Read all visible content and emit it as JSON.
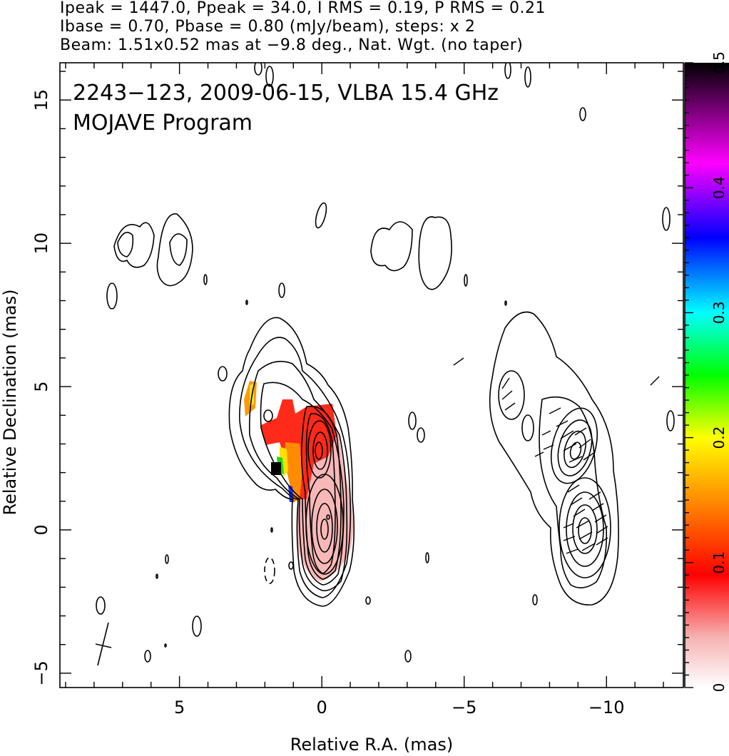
{
  "header": {
    "line1": "Ipeak = 1447.0, Ppeak = 34.0, I RMS = 0.19, P RMS = 0.21",
    "line2": "Ibase = 0.70, Pbase = 0.80 (mJy/beam), steps: x 2",
    "line3": "Beam: 1.51x0.52 mas at −9.8 deg., Nat. Wgt. (no taper)"
  },
  "chart_data": [
    {
      "type": "contour",
      "title": "2243−123, 2009-06-15, VLBA 15.4 GHz",
      "subtitle": "MOJAVE Program",
      "xlabel": "Relative R.A. (mas)",
      "ylabel": "Relative Declination (mas)",
      "xlim": [
        9.2,
        -12.7
      ],
      "ylim": [
        -5.5,
        16.3
      ],
      "x_ticks": [
        5,
        0,
        -5,
        -10
      ],
      "x_tick_labels": [
        "5",
        "0",
        "−5",
        "−10"
      ],
      "y_ticks": [
        -5,
        0,
        5,
        10,
        15
      ],
      "y_tick_labels": [
        "−5",
        "0",
        "5",
        "10",
        "15"
      ],
      "grid": false,
      "contour_levels_mJy_per_beam": [
        0.7,
        1.4,
        2.8,
        5.6,
        11.2,
        22.4,
        44.8,
        89.6,
        179.2,
        358.4,
        716.8,
        1433.6
      ],
      "components": [
        {
          "x": 0.0,
          "y": 0.0,
          "peak_mJy_per_beam": 1447.0
        },
        {
          "x": 0.2,
          "y": 2.8
        },
        {
          "x": 2.0,
          "y": 4.0
        }
      ],
      "beam": {
        "major_mas": 1.51,
        "minor_mas": 0.52,
        "pa_deg": -9.8,
        "x": 7.7,
        "y": -3.9
      },
      "colorbar": {
        "quantity": "fractional polarization",
        "range": [
          0,
          0.5
        ],
        "ticks": [
          0,
          0.1,
          0.2,
          0.3,
          0.4,
          0.5
        ],
        "tick_labels": [
          "0",
          "0.1",
          "0.2",
          "0.3",
          "0.4",
          "0.5"
        ],
        "colors": [
          "#ffffff",
          "#f6b3b3",
          "#ff0000",
          "#ff8c00",
          "#ffff00",
          "#00ff00",
          "#00ffff",
          "#0000ff",
          "#ff00ff",
          "#000000"
        ]
      }
    }
  ]
}
